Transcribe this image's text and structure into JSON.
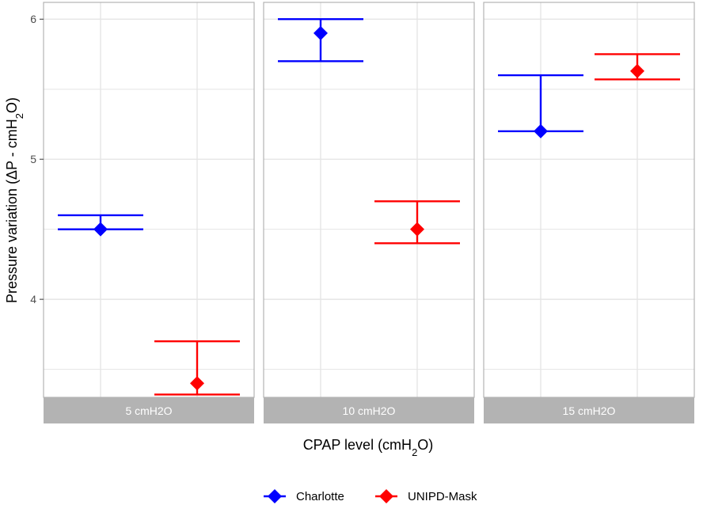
{
  "chart_data": {
    "type": "errorbar",
    "facets": [
      "5 cmH2O",
      "10 cmH2O",
      "15 cmH2O"
    ],
    "categories": [
      "Charlotte",
      "UNIPD-Mask"
    ],
    "xlabel": "CPAP level (cmH2O)",
    "ylabel": "Pressure variation (ΔP - cmH2O)",
    "ylim": [
      3.3,
      6.12
    ],
    "yticks": [
      4,
      5,
      6
    ],
    "grid": true,
    "legend_position": "bottom",
    "series": [
      {
        "name": "Charlotte",
        "color": "#0000ff",
        "points": [
          {
            "facet": "5 cmH2O",
            "y": 4.5,
            "ymin": 4.5,
            "ymax": 4.6
          },
          {
            "facet": "10 cmH2O",
            "y": 5.9,
            "ymin": 5.7,
            "ymax": 6.0
          },
          {
            "facet": "15 cmH2O",
            "y": 5.2,
            "ymin": 5.2,
            "ymax": 5.6
          }
        ]
      },
      {
        "name": "UNIPD-Mask",
        "color": "#ff0000",
        "points": [
          {
            "facet": "5 cmH2O",
            "y": 3.4,
            "ymin": 3.32,
            "ymax": 3.7
          },
          {
            "facet": "10 cmH2O",
            "y": 4.5,
            "ymin": 4.4,
            "ymax": 4.7
          },
          {
            "facet": "15 cmH2O",
            "y": 5.63,
            "ymin": 5.57,
            "ymax": 5.75
          }
        ]
      }
    ]
  },
  "axis": {
    "y_title_main": "Pressure variation (ΔP - cmH",
    "y_title_sub": "2",
    "y_title_end": "O)",
    "x_title_main": "CPAP level (cmH",
    "x_title_sub": "2",
    "x_title_end": "O)"
  },
  "colors": {
    "panel_border": "#b3b3b3",
    "grid": "#e5e5e5",
    "strip_fill": "#b3b3b3"
  }
}
